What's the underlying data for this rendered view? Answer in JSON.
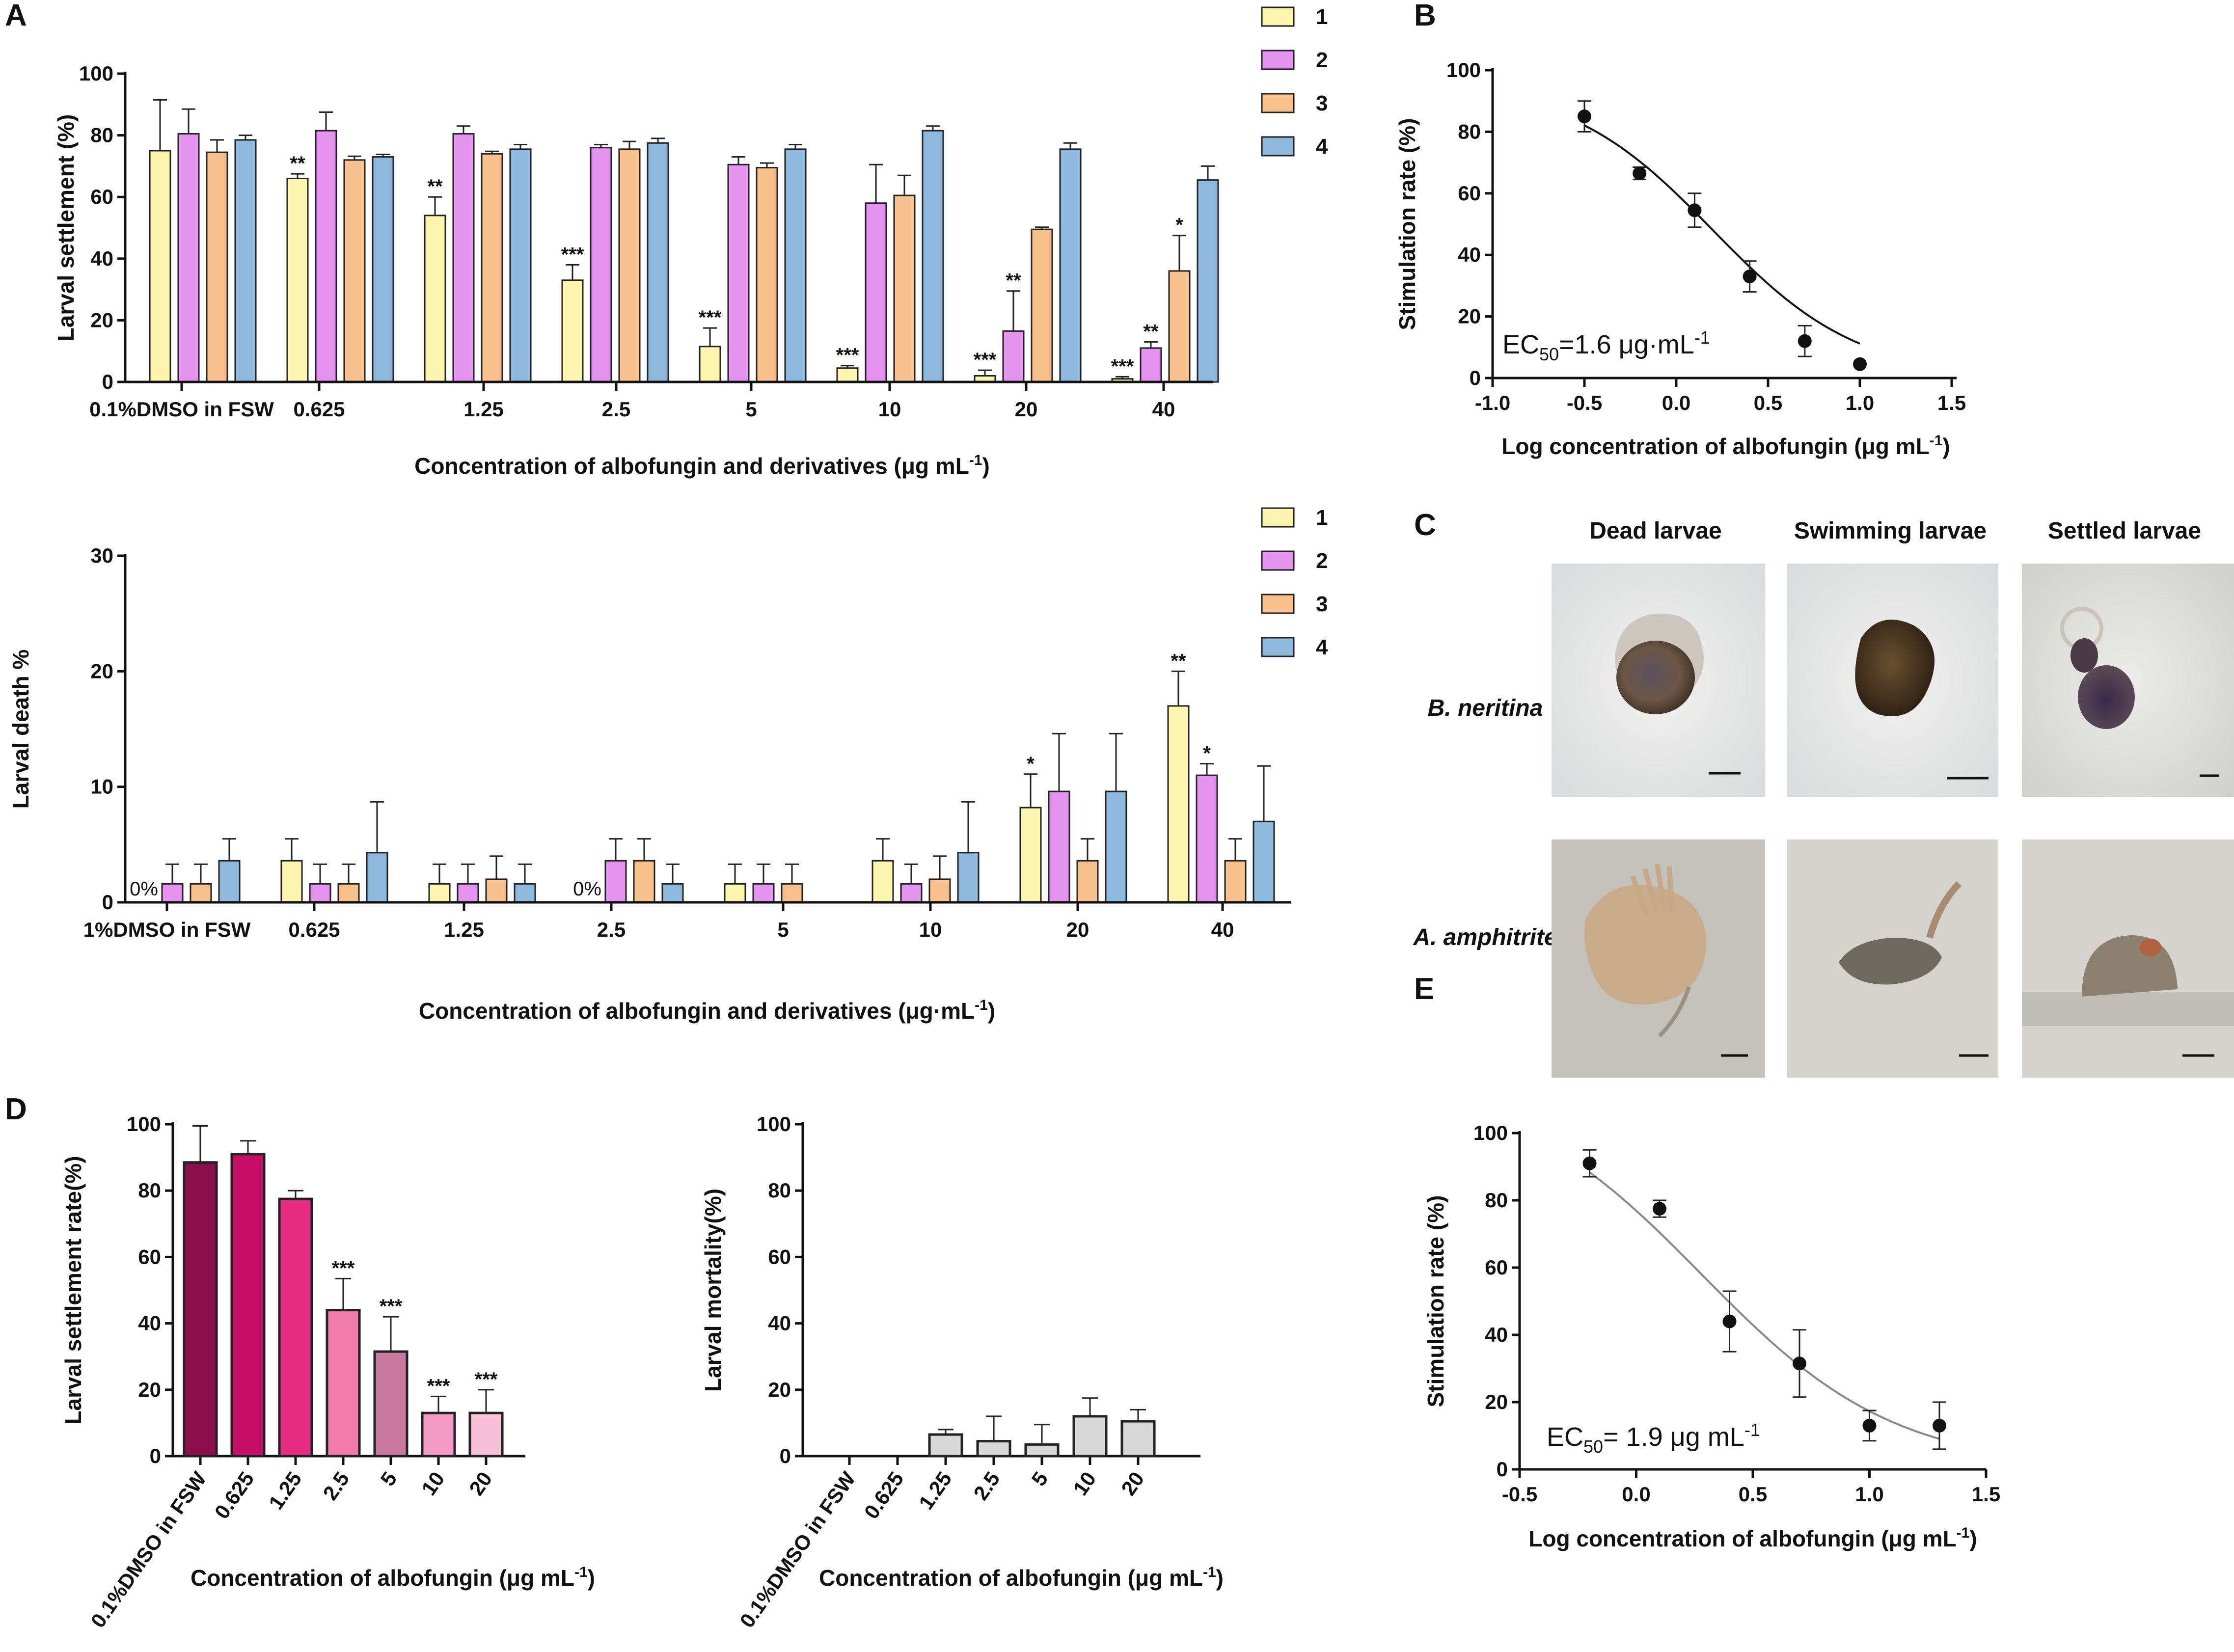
{
  "colors": {
    "s1": "#fbf5b0",
    "s2": "#e493ef",
    "s3": "#f7c08c",
    "s4": "#8fb8dd",
    "D_bars": [
      "#8a0f4c",
      "#c70e69",
      "#e42c83",
      "#f07aa8",
      "#c9789f",
      "#f49cc5",
      "#f8bfd8"
    ],
    "gray_bar": "#d9d9d9"
  },
  "panels": {
    "A": "A",
    "B": "B",
    "C": "C",
    "D": "D",
    "E": "E"
  },
  "chart_data": [
    {
      "id": "A_top",
      "type": "bar",
      "title": "",
      "xlabel": "Concentration of albofungin and derivatives (μg mL⁻¹)",
      "xlabel_main": "Concentration of albofungin and derivatives (μg mL",
      "xlabel_sup": "-1",
      "xlabel_end": ")",
      "ylabel": "Larval settlement (%)",
      "ylim": [
        0,
        100
      ],
      "yticks": [
        0,
        20,
        40,
        60,
        80,
        100
      ],
      "categories": [
        "0.1%DMSO in FSW",
        "0.625",
        "1.25",
        "2.5",
        "5",
        "10",
        "20",
        "40"
      ],
      "legend": [
        "1",
        "2",
        "3",
        "4"
      ],
      "legend_position": "top-right",
      "series": [
        {
          "name": "1",
          "values": [
            75,
            66,
            54,
            33,
            11.5,
            4.5,
            2,
            1
          ],
          "errors": [
            16.5,
            1.5,
            6,
            5,
            6,
            0.8,
            1.8,
            0.7
          ],
          "stars": [
            "",
            "**",
            "**",
            "***",
            "***",
            "***",
            "***",
            "***"
          ]
        },
        {
          "name": "2",
          "values": [
            80.5,
            81.5,
            80.5,
            76,
            70.5,
            58,
            16.5,
            11
          ],
          "errors": [
            8,
            6,
            2.5,
            1,
            2.5,
            12.5,
            13,
            2
          ],
          "stars": [
            "",
            "",
            "",
            "",
            "",
            "",
            "**",
            "**"
          ]
        },
        {
          "name": "3",
          "values": [
            74.5,
            72,
            74,
            75.5,
            69.5,
            60.5,
            49.5,
            36
          ],
          "errors": [
            4,
            1.2,
            0.8,
            2.5,
            1.5,
            6.5,
            0.7,
            11.5
          ],
          "stars": [
            "",
            "",
            "",
            "",
            "",
            "",
            "",
            "*"
          ]
        },
        {
          "name": "4",
          "values": [
            78.5,
            73,
            75.5,
            77.5,
            75.5,
            81.5,
            75.5,
            65.5
          ],
          "errors": [
            1.5,
            0.8,
            1.5,
            1.5,
            1.5,
            1.5,
            2,
            4.5
          ],
          "stars": [
            "",
            "",
            "",
            "",
            "",
            "",
            "",
            ""
          ]
        }
      ]
    },
    {
      "id": "A_bottom",
      "type": "bar",
      "title": "",
      "xlabel": "Concentration of albofungin and derivatives (μg·mL⁻¹)",
      "xlabel_main": "Concentration of albofungin and derivatives (μg·mL",
      "xlabel_sup": "-1",
      "xlabel_end": ")",
      "ylabel": "Larval death %",
      "ylim": [
        0,
        30
      ],
      "yticks": [
        0,
        10,
        20,
        30
      ],
      "categories": [
        "1%DMSO in FSW",
        "0.625",
        "1.25",
        "2.5",
        "5",
        "10",
        "20",
        "40"
      ],
      "legend": [
        "1",
        "2",
        "3",
        "4"
      ],
      "legend_position": "top-right",
      "zero_label": "0%",
      "series": [
        {
          "name": "1",
          "values": [
            0,
            3.6,
            1.6,
            0,
            1.6,
            3.6,
            8.2,
            17
          ],
          "errors": [
            0,
            1.9,
            1.7,
            0,
            1.7,
            1.9,
            2.9,
            3
          ],
          "stars": [
            "",
            "",
            "",
            "",
            "",
            "",
            "*",
            "**"
          ]
        },
        {
          "name": "2",
          "values": [
            1.6,
            1.6,
            1.6,
            3.6,
            1.6,
            1.6,
            9.6,
            11
          ],
          "errors": [
            1.7,
            1.7,
            1.7,
            1.9,
            1.7,
            1.7,
            5,
            1
          ],
          "stars": [
            "",
            "",
            "",
            "",
            "",
            "",
            "",
            "*"
          ]
        },
        {
          "name": "3",
          "values": [
            1.6,
            1.6,
            2,
            3.6,
            1.6,
            2,
            3.6,
            3.6
          ],
          "errors": [
            1.7,
            1.7,
            2,
            1.9,
            1.7,
            2,
            1.9,
            1.9
          ],
          "stars": [
            "",
            "",
            "",
            "",
            "",
            "",
            "",
            ""
          ]
        },
        {
          "name": "4",
          "values": [
            3.6,
            4.3,
            1.6,
            1.6,
            0,
            4.3,
            9.6,
            7
          ],
          "errors": [
            1.9,
            4.4,
            1.7,
            1.7,
            0,
            4.4,
            5,
            4.8
          ],
          "stars": [
            "",
            "",
            "",
            "",
            "",
            "",
            "",
            ""
          ]
        }
      ]
    },
    {
      "id": "B",
      "type": "scatter",
      "title": "",
      "xlabel": "Log concentration of albofungin (μg mL⁻¹)",
      "xlabel_main": "Log concentration of albofungin (μg mL",
      "xlabel_sup": "-1",
      "xlabel_end": ")",
      "ylabel": "Stimulation rate (%)",
      "xlim": [
        -1.0,
        1.5
      ],
      "ylim": [
        0,
        100
      ],
      "xticks": [
        "-1.0",
        "-0.5",
        "0.0",
        "0.5",
        "1.0",
        "1.5"
      ],
      "yticks": [
        0,
        20,
        40,
        60,
        80,
        100
      ],
      "x": [
        -0.5,
        -0.2,
        0.1,
        0.4,
        0.7,
        1.0
      ],
      "y": [
        85,
        66.5,
        54.5,
        33,
        12,
        4.5
      ],
      "errors": [
        5,
        2,
        5.5,
        5,
        5,
        0
      ],
      "fit": {
        "top": 96,
        "bottom": 0,
        "logEC50": 0.2,
        "hill": 1.1
      },
      "annotation": {
        "prefix": "EC",
        "sub": "50",
        "text": "=1.6 μg·mL",
        "sup": "-1"
      }
    },
    {
      "id": "D_left",
      "type": "bar",
      "title": "",
      "xlabel": "Concentration of albofungin (μg mL⁻¹)",
      "xlabel_main": "Concentration of albofungin (μg mL",
      "xlabel_sup": "-1",
      "xlabel_end": ")",
      "ylabel": "Larval settlement rate(%)",
      "ylim": [
        0,
        100
      ],
      "yticks": [
        0,
        20,
        40,
        60,
        80,
        100
      ],
      "categories": [
        "0.1%DMSO in FSW",
        "0.625",
        "1.25",
        "2.5",
        "5",
        "10",
        "20"
      ],
      "values": [
        88.5,
        91,
        77.5,
        44,
        31.5,
        13,
        13
      ],
      "errors": [
        11,
        4,
        2.5,
        9.5,
        10.5,
        5,
        7
      ],
      "stars": [
        "",
        "",
        "",
        "***",
        "***",
        "***",
        "***"
      ]
    },
    {
      "id": "D_right",
      "type": "bar",
      "title": "",
      "xlabel": "Concentration of albofungin (μg mL⁻¹)",
      "xlabel_main": "Concentration of albofungin (μg mL",
      "xlabel_sup": "-1",
      "xlabel_end": ")",
      "ylabel": "Larval mortality(%)",
      "ylim": [
        0,
        100
      ],
      "yticks": [
        0,
        20,
        40,
        60,
        80,
        100
      ],
      "categories": [
        "0.1%DMSO in FSW",
        "0.625",
        "1.25",
        "2.5",
        "5",
        "10",
        "20"
      ],
      "values": [
        0,
        0,
        6.5,
        4.5,
        3.5,
        12,
        10.5
      ],
      "errors": [
        0,
        0,
        1.5,
        7.5,
        6,
        5.5,
        3.5
      ]
    },
    {
      "id": "E",
      "type": "scatter",
      "title": "",
      "xlabel": "Log concentration of albofungin (μg mL⁻¹)",
      "xlabel_main": "Log concentration of albofungin (μg mL",
      "xlabel_sup": "-1",
      "xlabel_end": ")",
      "ylabel": "Stimulation rate (%)",
      "xlim": [
        -0.5,
        1.5
      ],
      "ylim": [
        0,
        100
      ],
      "xticks": [
        "-0.5",
        "0.0",
        "0.5",
        "1.0",
        "1.5"
      ],
      "yticks": [
        0,
        20,
        40,
        60,
        80,
        100
      ],
      "x": [
        -0.2,
        0.1,
        0.4,
        0.7,
        1.0,
        1.3
      ],
      "y": [
        91,
        77.5,
        44,
        31.5,
        13,
        13
      ],
      "errors": [
        4,
        2.5,
        9,
        10,
        4.5,
        7
      ],
      "fit": {
        "top": 116,
        "bottom": 0,
        "logEC50": 0.28,
        "hill": 1.05
      },
      "annotation": {
        "prefix": "EC",
        "sub": "50",
        "text": "= 1.9 μg mL",
        "sup": "-1"
      }
    }
  ],
  "micrographs": {
    "columns": [
      "Dead larvae",
      "Swimming larvae",
      "Settled larvae"
    ],
    "rows": [
      "B. neritina",
      "A. amphitrite"
    ]
  }
}
